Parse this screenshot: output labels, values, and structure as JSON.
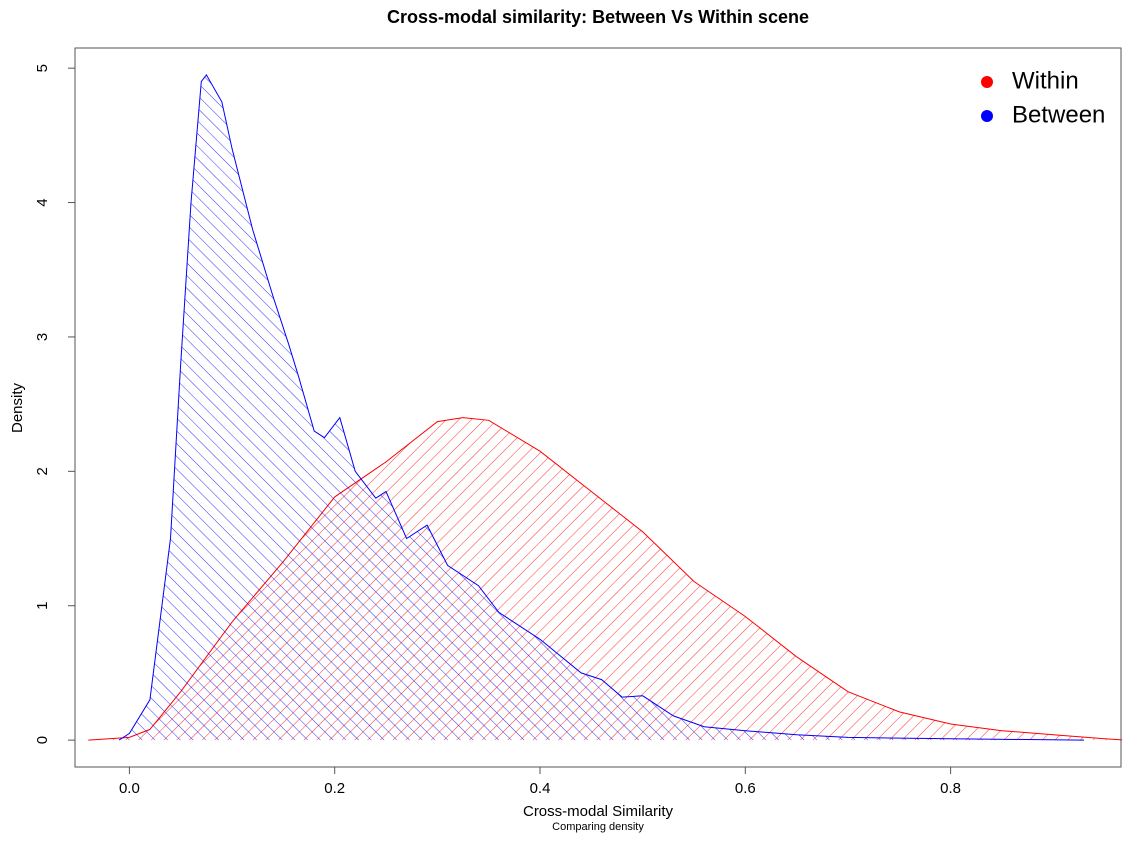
{
  "chart_data": {
    "type": "density",
    "title": "Cross-modal similarity: Between Vs Within scene",
    "xlabel": "Cross-modal Similarity",
    "subtitle": "Comparing density",
    "ylabel": "Density",
    "xlim": [
      -0.053,
      0.966
    ],
    "ylim": [
      -0.2,
      5.15
    ],
    "xticks": [
      {
        "value": 0,
        "label": "0.0"
      },
      {
        "value": 0.2,
        "label": "0.2"
      },
      {
        "value": 0.4,
        "label": "0.4"
      },
      {
        "value": 0.6,
        "label": "0.6"
      },
      {
        "value": 0.8,
        "label": "0.8"
      }
    ],
    "yticks": [
      0,
      1,
      2,
      3,
      4,
      5
    ],
    "legend_position": "top-right",
    "series": [
      {
        "name": "Within",
        "color": "#ff0000",
        "x": [
          -0.04,
          0.0,
          0.02,
          0.05,
          0.1,
          0.15,
          0.2,
          0.25,
          0.3,
          0.325,
          0.35,
          0.4,
          0.45,
          0.5,
          0.55,
          0.6,
          0.65,
          0.7,
          0.75,
          0.8,
          0.85,
          0.9,
          0.95,
          0.97
        ],
        "values": [
          0,
          0.02,
          0.08,
          0.36,
          0.88,
          1.33,
          1.81,
          2.07,
          2.37,
          2.4,
          2.38,
          2.15,
          1.85,
          1.55,
          1.18,
          0.92,
          0.62,
          0.36,
          0.21,
          0.12,
          0.07,
          0.04,
          0.01,
          0
        ]
      },
      {
        "name": "Between",
        "color": "#0000ff",
        "x": [
          -0.01,
          0.0,
          0.02,
          0.04,
          0.05,
          0.06,
          0.07,
          0.075,
          0.09,
          0.1,
          0.12,
          0.14,
          0.155,
          0.165,
          0.18,
          0.19,
          0.205,
          0.22,
          0.24,
          0.25,
          0.27,
          0.29,
          0.31,
          0.34,
          0.36,
          0.4,
          0.44,
          0.46,
          0.48,
          0.5,
          0.53,
          0.56,
          0.6,
          0.65,
          0.7,
          0.8,
          0.93
        ],
        "values": [
          0,
          0.05,
          0.3,
          1.5,
          2.8,
          4.0,
          4.9,
          4.95,
          4.75,
          4.4,
          3.8,
          3.3,
          2.95,
          2.7,
          2.3,
          2.25,
          2.4,
          2.0,
          1.8,
          1.85,
          1.5,
          1.6,
          1.3,
          1.15,
          0.95,
          0.75,
          0.5,
          0.45,
          0.32,
          0.33,
          0.18,
          0.1,
          0.07,
          0.04,
          0.02,
          0.01,
          0
        ]
      }
    ]
  }
}
